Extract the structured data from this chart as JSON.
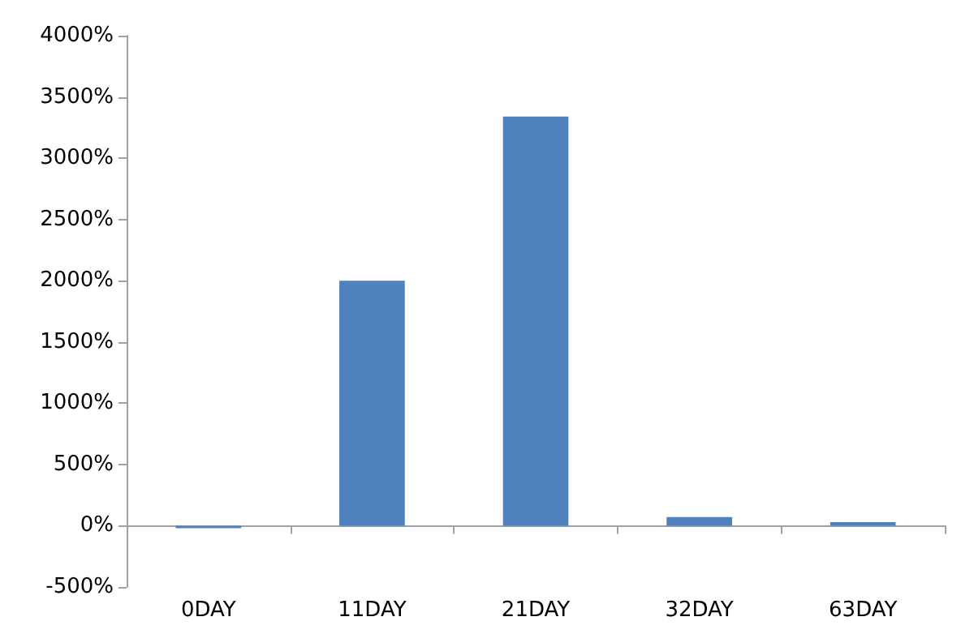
{
  "chart_data": {
    "type": "bar",
    "categories": [
      "0DAY",
      "11DAY",
      "21DAY",
      "32DAY",
      "63DAY"
    ],
    "values": [
      -20,
      2000,
      3340,
      70,
      30
    ],
    "color": "#4f81bd",
    "ylim": [
      -500,
      4000
    ],
    "yticks": [
      {
        "value": -500,
        "label": "-500%"
      },
      {
        "value": 0,
        "label": "0%"
      },
      {
        "value": 500,
        "label": "500%"
      },
      {
        "value": 1000,
        "label": "1000%"
      },
      {
        "value": 1500,
        "label": "1500%"
      },
      {
        "value": 2000,
        "label": "2000%"
      },
      {
        "value": 2500,
        "label": "2500%"
      },
      {
        "value": 3000,
        "label": "3000%"
      },
      {
        "value": 3500,
        "label": "3500%"
      },
      {
        "value": 4000,
        "label": "4000%"
      }
    ]
  }
}
